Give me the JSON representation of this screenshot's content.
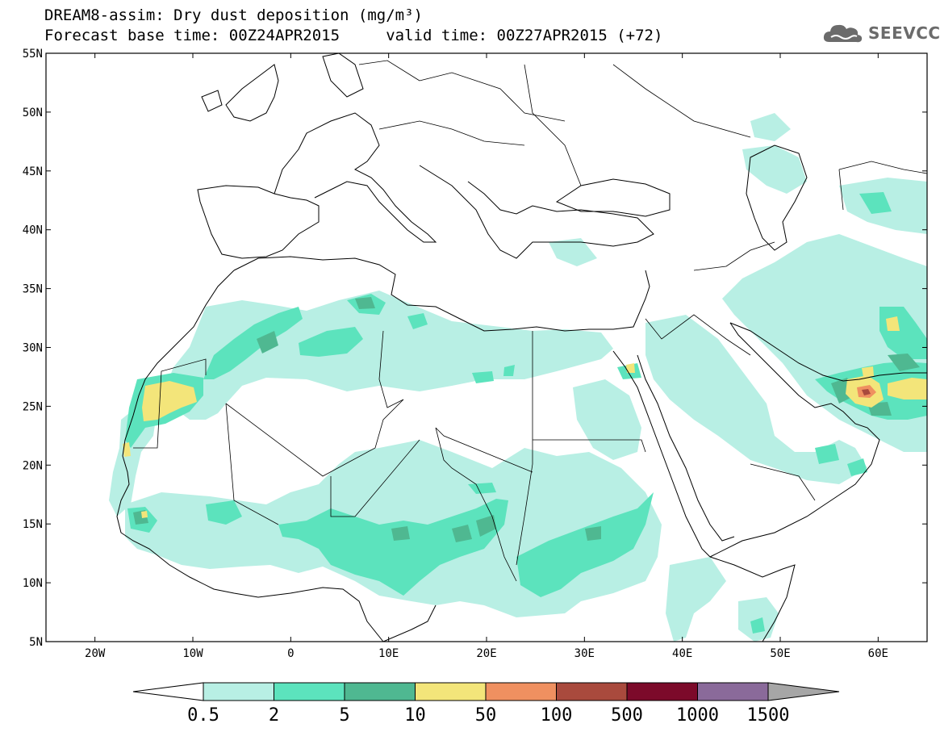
{
  "title": {
    "line1": "DREAM8-assim: Dry dust deposition (mg/m³)",
    "line2": "Forecast base time: 00Z24APR2015     valid time: 00Z27APR2015 (+72)"
  },
  "logo": {
    "text": "SEEVCCC",
    "icon": "cloud-icon"
  },
  "map": {
    "projection": "lat-lon",
    "lon_range": [
      -25,
      65
    ],
    "lat_range": [
      5,
      55
    ],
    "lat_ticks": [
      "5N",
      "10N",
      "15N",
      "20N",
      "25N",
      "30N",
      "35N",
      "40N",
      "45N",
      "50N",
      "55N"
    ],
    "lon_ticks": [
      "20W",
      "10W",
      "0",
      "10E",
      "20E",
      "30E",
      "40E",
      "50E",
      "60E"
    ]
  },
  "colorbar": {
    "labels": [
      "0.5",
      "2",
      "5",
      "10",
      "50",
      "100",
      "500",
      "1000",
      "1500"
    ],
    "colors": [
      "#b8efe4",
      "#5ce3bd",
      "#4fb891",
      "#f3e57a",
      "#ef9060",
      "#a94a3d",
      "#7c0a2a",
      "#8a6a9a"
    ],
    "under_color": "#ffffff",
    "over_color": "#a6a6a6"
  }
}
